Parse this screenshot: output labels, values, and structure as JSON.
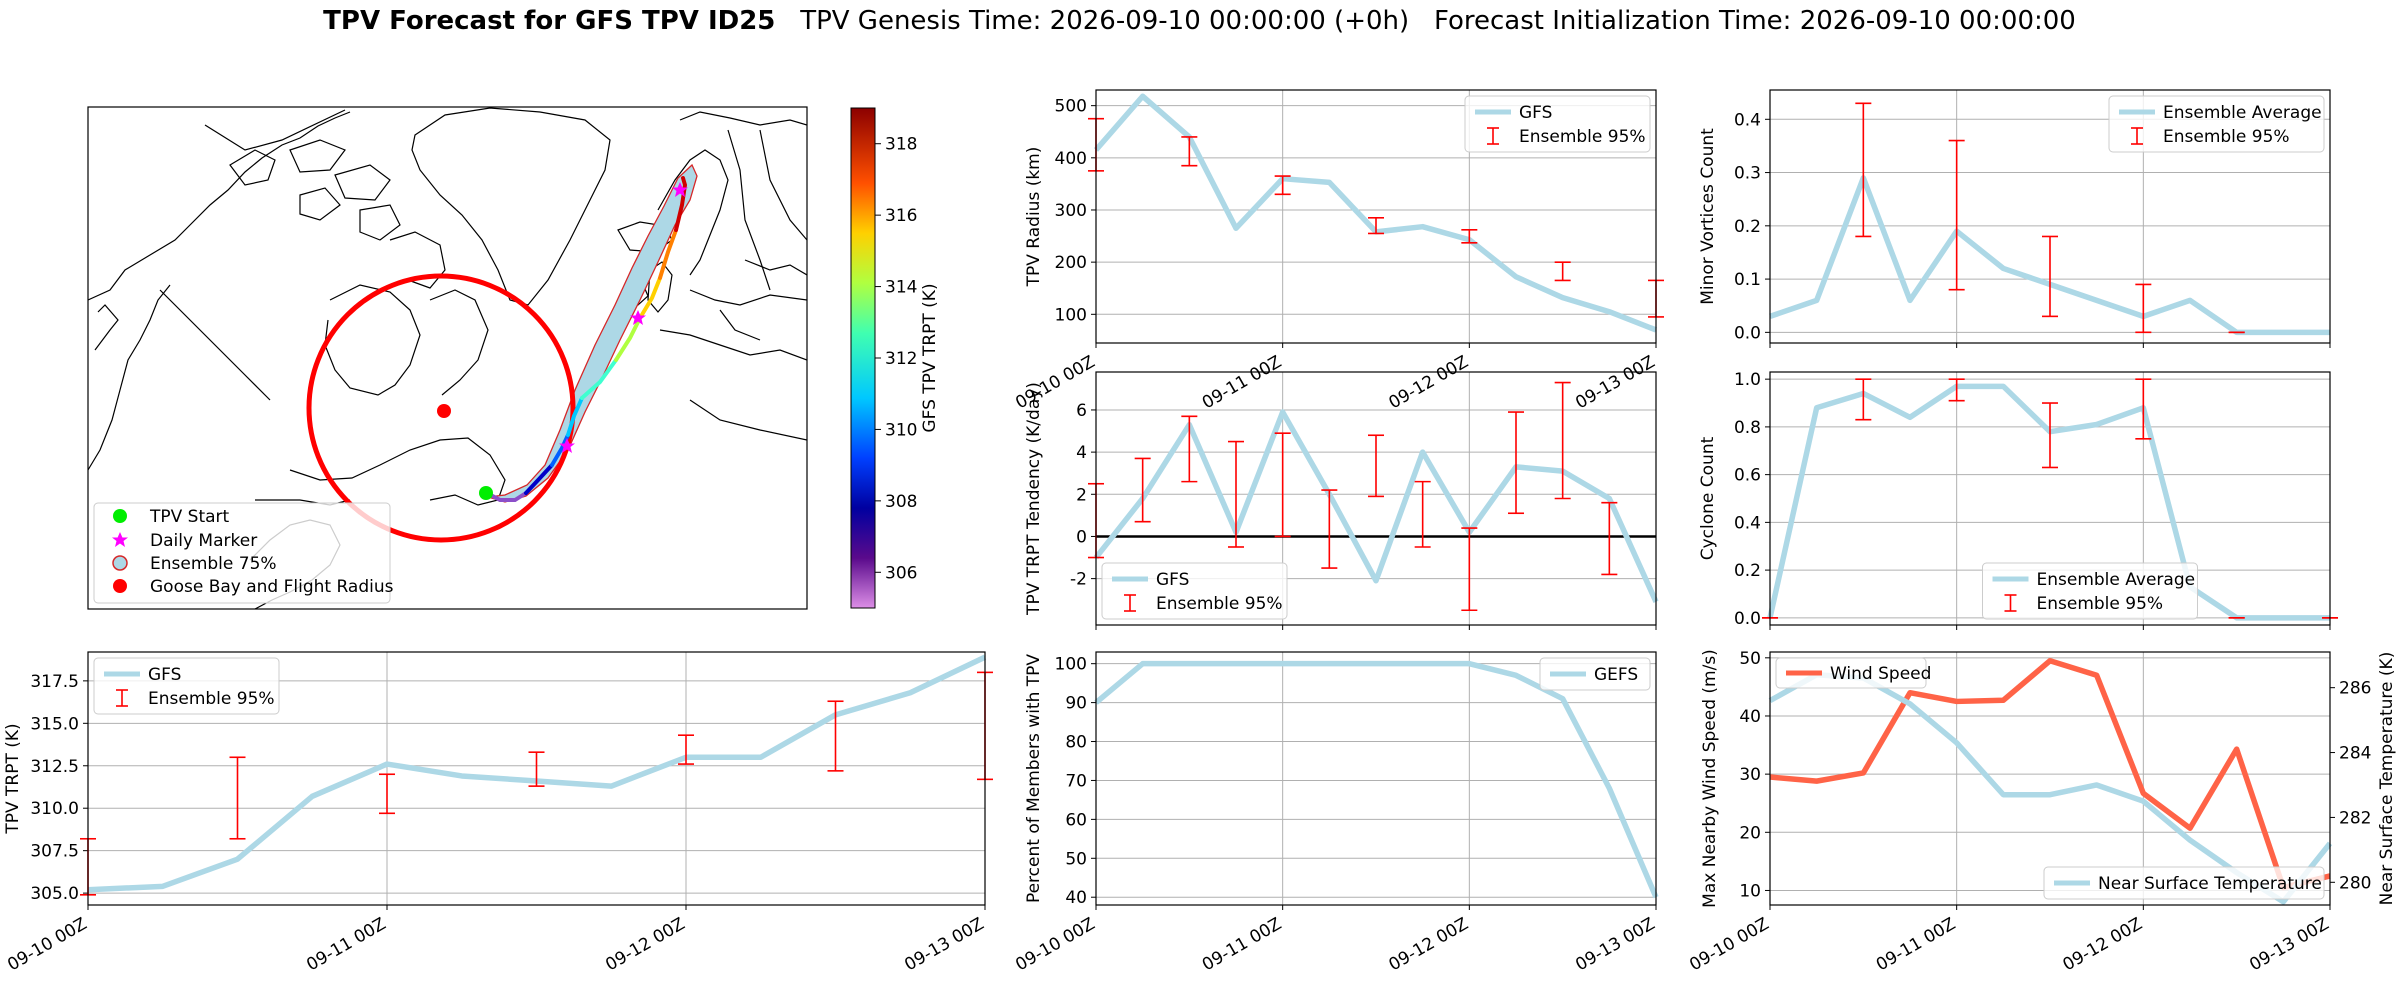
{
  "figure": {
    "title_bold": "TPV Forecast for GFS TPV ID25",
    "title_rest": "TPV Genesis Time: 2026-09-10 00:00:00 (+0h)   Forecast Initialization Time: 2026-09-10 00:00:00"
  },
  "map": {
    "legend": [
      "TPV Start",
      "Daily Marker",
      "Ensemble 75%",
      "Goose Bay and Flight Radius"
    ],
    "colorbar_label": "GFS TPV TRPT (K)",
    "colorbar_ticks": [
      "306",
      "308",
      "310",
      "312",
      "314",
      "316",
      "318"
    ],
    "colorbar_range": [
      305,
      319
    ]
  },
  "chart_data": [
    {
      "id": "radius",
      "type": "line",
      "x": [
        "09-10 00Z",
        "09-10 06Z",
        "09-10 12Z",
        "09-10 18Z",
        "09-11 00Z",
        "09-11 06Z",
        "09-11 12Z",
        "09-11 18Z",
        "09-12 00Z",
        "09-12 06Z",
        "09-12 12Z",
        "09-12 18Z",
        "09-13 00Z"
      ],
      "xticks": [
        "09-10 00Z",
        "09-11 00Z",
        "09-12 00Z",
        "09-13 00Z"
      ],
      "ylabel": "TPV Radius (km)",
      "ylim": [
        45,
        530
      ],
      "yticks": [
        "100",
        "200",
        "300",
        "400",
        "500"
      ],
      "legend": [
        "GFS",
        "Ensemble 95%"
      ],
      "legend_loc": "upper right",
      "series": [
        {
          "name": "GFS",
          "values": [
            415,
            518,
            440,
            265,
            360,
            353,
            258,
            268,
            243,
            172,
            132,
            105,
            70
          ]
        }
      ],
      "errorbars": [
        {
          "x": 0,
          "low": 375,
          "high": 475
        },
        {
          "x": 2,
          "low": 385,
          "high": 440
        },
        {
          "x": 4,
          "low": 330,
          "high": 365
        },
        {
          "x": 6,
          "low": 255,
          "high": 285
        },
        {
          "x": 8,
          "low": 237,
          "high": 262
        },
        {
          "x": 10,
          "low": 165,
          "high": 200
        },
        {
          "x": 12,
          "low": 95,
          "high": 165
        }
      ]
    },
    {
      "id": "minor",
      "type": "line",
      "ylabel": "Minor Vortices Count",
      "ylim": [
        -0.02,
        0.455
      ],
      "yticks": [
        "0.0",
        "0.1",
        "0.2",
        "0.3",
        "0.4"
      ],
      "legend": [
        "Ensemble Average",
        "Ensemble 95%"
      ],
      "legend_loc": "upper right",
      "series": [
        {
          "name": "Ensemble Average",
          "values": [
            0.03,
            0.06,
            0.29,
            0.06,
            0.19,
            0.12,
            0.09,
            0.06,
            0.03,
            0.06,
            0.0,
            0.0,
            0.0
          ]
        }
      ],
      "errorbars": [
        {
          "x": 2,
          "low": 0.18,
          "high": 0.43
        },
        {
          "x": 4,
          "low": 0.08,
          "high": 0.36
        },
        {
          "x": 6,
          "low": 0.03,
          "high": 0.18
        },
        {
          "x": 8,
          "low": 0.0,
          "high": 0.09
        },
        {
          "x": 10,
          "low": 0.0,
          "high": 0.0
        }
      ]
    },
    {
      "id": "tendency",
      "type": "line",
      "ylabel": "TPV TRPT Tendency (K/day)",
      "ylim": [
        -4.2,
        7.8
      ],
      "yticks": [
        "-2",
        "0",
        "2",
        "4",
        "6"
      ],
      "zero_line": true,
      "legend": [
        "GFS",
        "Ensemble 95%"
      ],
      "legend_loc": "lower left",
      "series": [
        {
          "name": "GFS",
          "values": [
            -1.0,
            1.8,
            5.3,
            0.2,
            5.9,
            2.0,
            -2.1,
            4.0,
            0.2,
            3.3,
            3.1,
            1.8,
            -3.1
          ]
        }
      ],
      "errorbars": [
        {
          "x": 0,
          "low": -1.0,
          "high": 2.5
        },
        {
          "x": 1,
          "low": 0.7,
          "high": 3.7
        },
        {
          "x": 2,
          "low": 2.6,
          "high": 5.7
        },
        {
          "x": 3,
          "low": -0.5,
          "high": 4.5
        },
        {
          "x": 4,
          "low": 0.0,
          "high": 4.9
        },
        {
          "x": 5,
          "low": -1.5,
          "high": 2.2
        },
        {
          "x": 6,
          "low": 1.9,
          "high": 4.8
        },
        {
          "x": 7,
          "low": -0.5,
          "high": 2.6
        },
        {
          "x": 8,
          "low": -3.5,
          "high": 0.4
        },
        {
          "x": 9,
          "low": 1.1,
          "high": 5.9
        },
        {
          "x": 10,
          "low": 1.8,
          "high": 7.3
        },
        {
          "x": 11,
          "low": -1.8,
          "high": 1.6
        }
      ]
    },
    {
      "id": "cyclone",
      "type": "line",
      "ylabel": "Cyclone Count",
      "ylim": [
        -0.03,
        1.03
      ],
      "yticks": [
        "0.0",
        "0.2",
        "0.4",
        "0.6",
        "0.8",
        "1.0"
      ],
      "legend": [
        "Ensemble Average",
        "Ensemble 95%"
      ],
      "legend_loc": "lower center",
      "series": [
        {
          "name": "Ensemble Average",
          "values": [
            0.0,
            0.88,
            0.94,
            0.84,
            0.97,
            0.97,
            0.78,
            0.81,
            0.88,
            0.13,
            0.0,
            0.0,
            0.0
          ]
        }
      ],
      "errorbars": [
        {
          "x": 0,
          "low": 0.0,
          "high": 0.0
        },
        {
          "x": 2,
          "low": 0.83,
          "high": 1.0
        },
        {
          "x": 4,
          "low": 0.91,
          "high": 1.0
        },
        {
          "x": 6,
          "low": 0.63,
          "high": 0.9
        },
        {
          "x": 8,
          "low": 0.75,
          "high": 1.0
        },
        {
          "x": 10,
          "low": 0.0,
          "high": 0.0
        },
        {
          "x": 12,
          "low": 0.0,
          "high": 0.0
        }
      ]
    },
    {
      "id": "trpt",
      "type": "line",
      "ylabel": "TPV TRPT (K)",
      "ylim": [
        304.3,
        319.2
      ],
      "yticks": [
        "305.0",
        "307.5",
        "310.0",
        "312.5",
        "315.0",
        "317.5"
      ],
      "xticks": [
        "09-10 00Z",
        "09-11 00Z",
        "09-12 00Z",
        "09-13 00Z"
      ],
      "legend": [
        "GFS",
        "Ensemble 95%"
      ],
      "legend_loc": "upper left",
      "series": [
        {
          "name": "GFS",
          "values": [
            305.2,
            305.4,
            307.0,
            310.7,
            312.6,
            311.9,
            311.6,
            311.3,
            313.0,
            313.0,
            315.5,
            316.8,
            318.9
          ]
        }
      ],
      "errorbars": [
        {
          "x": 0,
          "low": 304.9,
          "high": 308.2
        },
        {
          "x": 2,
          "low": 308.2,
          "high": 313.0
        },
        {
          "x": 4,
          "low": 309.7,
          "high": 312.0
        },
        {
          "x": 6,
          "low": 311.3,
          "high": 313.3
        },
        {
          "x": 8,
          "low": 312.6,
          "high": 314.3
        },
        {
          "x": 10,
          "low": 312.2,
          "high": 316.3
        },
        {
          "x": 12,
          "low": 311.7,
          "high": 318.0
        }
      ]
    },
    {
      "id": "members",
      "type": "line",
      "ylabel": "Percent of Members with TPV",
      "ylim": [
        38,
        103
      ],
      "yticks": [
        "40",
        "50",
        "60",
        "70",
        "80",
        "90",
        "100"
      ],
      "xticks": [
        "09-10 00Z",
        "09-11 00Z",
        "09-12 00Z",
        "09-13 00Z"
      ],
      "legend": [
        "GEFS"
      ],
      "legend_loc": "upper right",
      "series": [
        {
          "name": "GEFS",
          "values": [
            90,
            100,
            100,
            100,
            100,
            100,
            100,
            100,
            100,
            97,
            91,
            68,
            40
          ]
        }
      ]
    },
    {
      "id": "wind",
      "type": "line",
      "ylabel": "Max Nearby Wind Speed (m/s)",
      "ylim": [
        7.5,
        51
      ],
      "yticks": [
        "10",
        "20",
        "30",
        "40",
        "50"
      ],
      "ylabel_right": "Near Surface Temperature (K)",
      "ylim_right": [
        279.3,
        287.1
      ],
      "yticks_right": [
        "280",
        "282",
        "284",
        "286"
      ],
      "xticks": [
        "09-10 00Z",
        "09-11 00Z",
        "09-12 00Z",
        "09-13 00Z"
      ],
      "legend": [
        "Wind Speed",
        "Near Surface Temperature"
      ],
      "colors": {
        "wind": "#ff6347",
        "temp": "#add8e6",
        "right_axis": "#4169e1"
      },
      "series": [
        {
          "name": "Wind Speed",
          "values": [
            29.5,
            28.8,
            30.2,
            44.0,
            42.5,
            42.7,
            49.5,
            47.0,
            26.7,
            20.7,
            34.3,
            10.5,
            12.5
          ]
        },
        {
          "name": "Near Surface Temperature",
          "values": [
            285.6,
            286.4,
            286.3,
            285.5,
            284.3,
            282.7,
            282.7,
            283.0,
            282.5,
            281.3,
            280.3,
            279.4,
            281.2
          ]
        }
      ]
    }
  ]
}
